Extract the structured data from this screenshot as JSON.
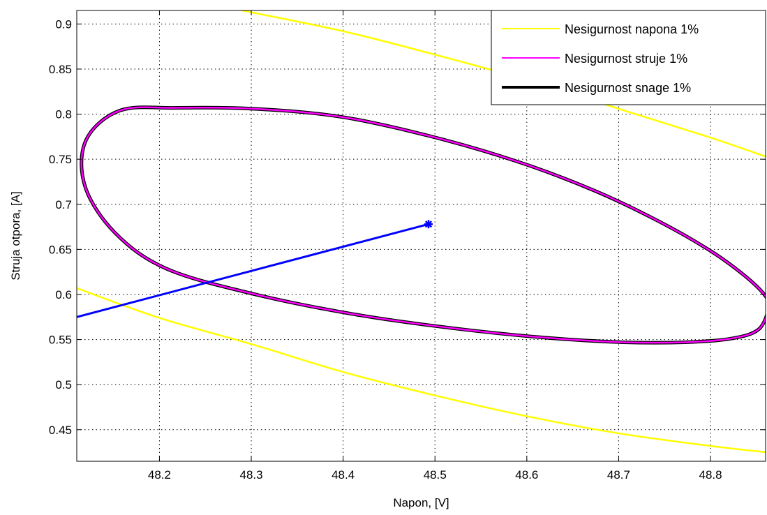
{
  "chart_data": {
    "type": "line",
    "xlabel": "Napon, [V]",
    "ylabel": "Struja otpora, [A]",
    "xlim": [
      48.11,
      48.86
    ],
    "ylim": [
      0.415,
      0.915
    ],
    "x_ticks": [
      48.2,
      48.3,
      48.4,
      48.5,
      48.6,
      48.7,
      48.8
    ],
    "x_tick_labels": [
      "48.2",
      "48.3",
      "48.4",
      "48.5",
      "48.6",
      "48.7",
      "48.8"
    ],
    "y_ticks": [
      0.45,
      0.5,
      0.55,
      0.6,
      0.65,
      0.7,
      0.75,
      0.8,
      0.85,
      0.9
    ],
    "y_tick_labels": [
      "0.45",
      "0.5",
      "0.55",
      "0.6",
      "0.65",
      "0.7",
      "0.75",
      "0.8",
      "0.85",
      "0.9"
    ],
    "grid": true,
    "legend_position": "top-right",
    "series": [
      {
        "name": "Nesigurnost napona 1%",
        "color": "#ffff00",
        "x": [
          48.11,
          48.2,
          48.3,
          48.4,
          48.5,
          48.6,
          48.7,
          48.8,
          48.86
        ],
        "y": [
          0.607,
          0.574,
          0.545,
          0.514,
          0.488,
          0.465,
          0.446,
          0.432,
          0.425
        ]
      },
      {
        "name": "Nesigurnost napona 1%",
        "color": "#ffff00",
        "x": [
          48.29,
          48.4,
          48.5,
          48.6,
          48.7,
          48.8,
          48.86
        ],
        "y": [
          0.915,
          0.892,
          0.866,
          0.838,
          0.806,
          0.774,
          0.753
        ]
      },
      {
        "name": "Nesigurnost struje 1%",
        "color": "#ff00ff",
        "center": [
          48.49,
          0.678
        ],
        "x": [
          48.863,
          48.852,
          48.822,
          48.772,
          48.705,
          48.621,
          48.524,
          48.418,
          48.309,
          48.209,
          48.152,
          48.119,
          48.12,
          48.157,
          48.218,
          48.302,
          48.398,
          48.497,
          48.591,
          48.674,
          48.744,
          48.799,
          48.837,
          48.86,
          48.863
        ],
        "y": [
          0.584,
          0.561,
          0.551,
          0.547,
          0.547,
          0.552,
          0.562,
          0.577,
          0.599,
          0.628,
          0.668,
          0.72,
          0.771,
          0.804,
          0.807,
          0.806,
          0.797,
          0.775,
          0.747,
          0.715,
          0.681,
          0.649,
          0.621,
          0.598,
          0.584
        ]
      },
      {
        "name": "Nesigurnost snage 1%",
        "color": "#000000",
        "center": [
          48.49,
          0.678
        ],
        "x": [
          48.863,
          48.852,
          48.822,
          48.772,
          48.705,
          48.621,
          48.524,
          48.418,
          48.309,
          48.209,
          48.152,
          48.119,
          48.12,
          48.157,
          48.218,
          48.302,
          48.398,
          48.497,
          48.591,
          48.674,
          48.744,
          48.799,
          48.837,
          48.86,
          48.863
        ],
        "y": [
          0.584,
          0.561,
          0.551,
          0.547,
          0.547,
          0.552,
          0.562,
          0.577,
          0.599,
          0.628,
          0.668,
          0.72,
          0.771,
          0.804,
          0.807,
          0.806,
          0.797,
          0.775,
          0.747,
          0.715,
          0.681,
          0.649,
          0.621,
          0.598,
          0.584
        ]
      },
      {
        "color": "#0000ff",
        "x": [
          48.11,
          48.493
        ],
        "y": [
          0.575,
          0.678
        ]
      }
    ],
    "markers": [
      {
        "x": 48.493,
        "y": 0.678,
        "symbol": "*",
        "color": "#0000ff"
      }
    ],
    "legend": [
      {
        "label": "Nesigurnost napona 1%",
        "color": "#ffff00"
      },
      {
        "label": "Nesigurnost struje 1%",
        "color": "#ff00ff"
      },
      {
        "label": "Nesigurnost snage 1%",
        "color": "#000000"
      }
    ]
  }
}
